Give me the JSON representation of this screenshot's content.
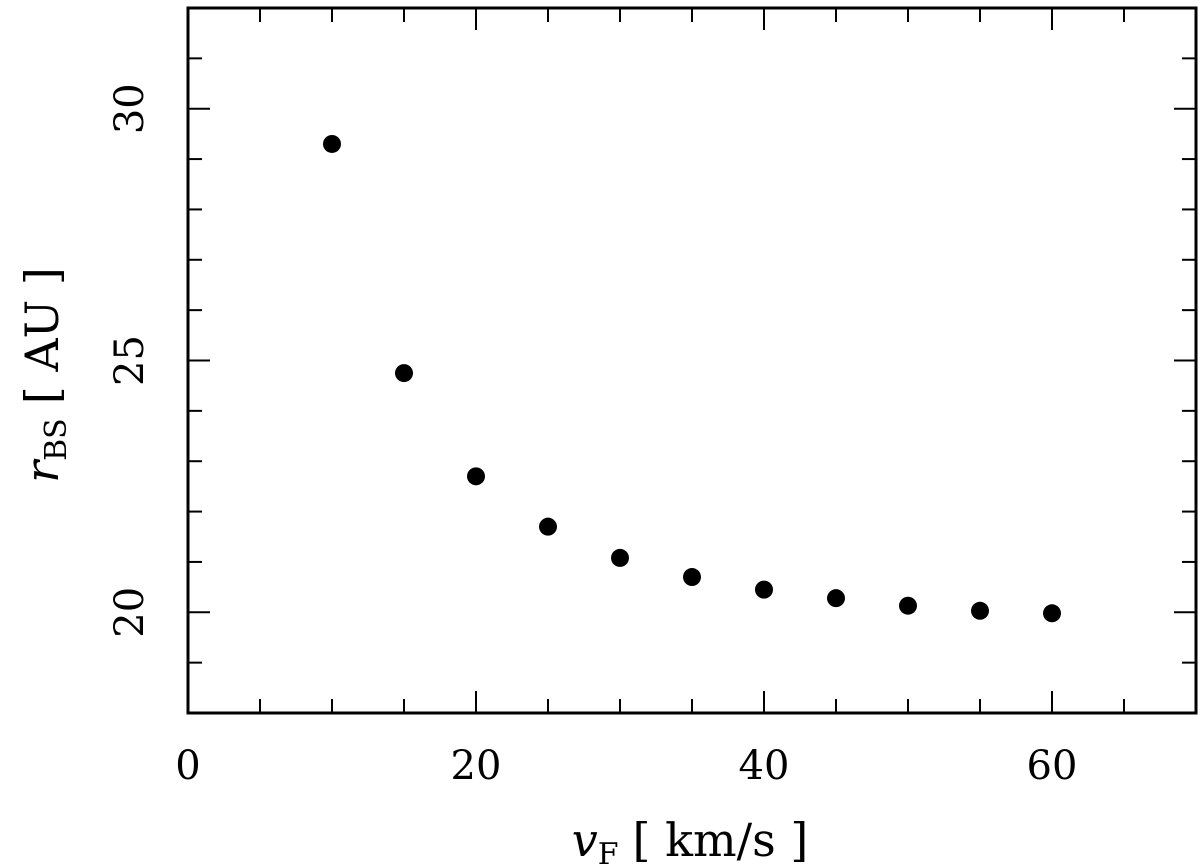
{
  "chart_data": {
    "type": "scatter",
    "title": "",
    "xlabel": {
      "symbol": "v",
      "subscript": "F",
      "unit": "[ km/s ]"
    },
    "ylabel": {
      "symbol": "r",
      "subscript": "BS",
      "unit": "[ AU ]"
    },
    "xlim": [
      0,
      70
    ],
    "ylim": [
      18,
      32
    ],
    "x_major_ticks": [
      0,
      20,
      40,
      60
    ],
    "x_tick_labels": [
      "0",
      "20",
      "40",
      "60"
    ],
    "x_minor_step": 5,
    "y_major_ticks": [
      20,
      25,
      30
    ],
    "y_tick_labels": [
      "20",
      "25",
      "30"
    ],
    "y_minor_step": 1,
    "grid": false,
    "marker_color": "#000000",
    "series": [
      {
        "x": [
          10,
          15,
          20,
          25,
          30,
          35,
          40,
          45,
          50,
          55,
          60
        ],
        "y": [
          29.3,
          24.75,
          22.7,
          21.7,
          21.08,
          20.7,
          20.45,
          20.28,
          20.13,
          20.03,
          19.98
        ]
      }
    ]
  }
}
